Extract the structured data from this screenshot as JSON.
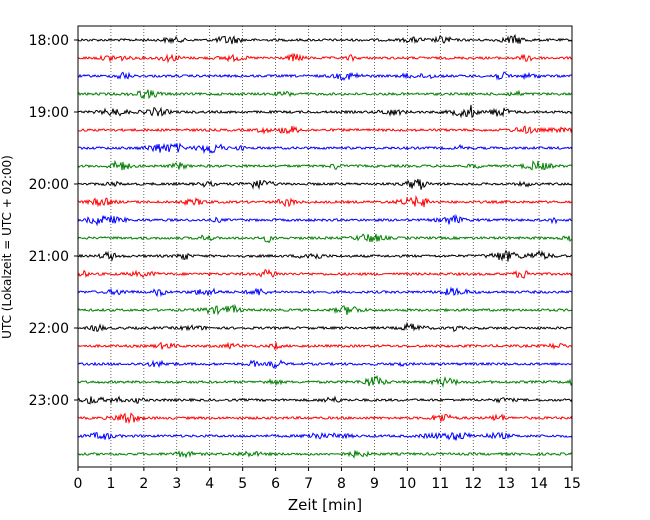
{
  "chart_data": {
    "type": "line",
    "subtype": "helicorder",
    "xlabel": "Zeit  [min]",
    "ylabel": "UTC (Lokalzeit = UTC + 02:00)",
    "xlim": [
      0,
      15
    ],
    "xticks": [
      "0",
      "1",
      "2",
      "3",
      "4",
      "5",
      "6",
      "7",
      "8",
      "9",
      "10",
      "11",
      "12",
      "13",
      "14",
      "15"
    ],
    "yticks": [
      "18:00",
      "19:00",
      "20:00",
      "21:00",
      "22:00",
      "23:00"
    ],
    "grid": "vertical-dotted",
    "trace_colors": [
      "#000000",
      "#ff0000",
      "#0000ff",
      "#008000"
    ],
    "traces": [
      {
        "time": "18:00"
      },
      {
        "time": "18:15"
      },
      {
        "time": "18:30"
      },
      {
        "time": "18:45"
      },
      {
        "time": "19:00"
      },
      {
        "time": "19:15"
      },
      {
        "time": "19:30"
      },
      {
        "time": "19:45"
      },
      {
        "time": "20:00"
      },
      {
        "time": "20:15"
      },
      {
        "time": "20:30"
      },
      {
        "time": "20:45"
      },
      {
        "time": "21:00"
      },
      {
        "time": "21:15"
      },
      {
        "time": "21:30"
      },
      {
        "time": "21:45"
      },
      {
        "time": "22:00"
      },
      {
        "time": "22:15"
      },
      {
        "time": "22:30"
      },
      {
        "time": "22:45"
      },
      {
        "time": "23:00"
      },
      {
        "time": "23:15"
      },
      {
        "time": "23:30"
      },
      {
        "time": "23:45"
      }
    ]
  }
}
